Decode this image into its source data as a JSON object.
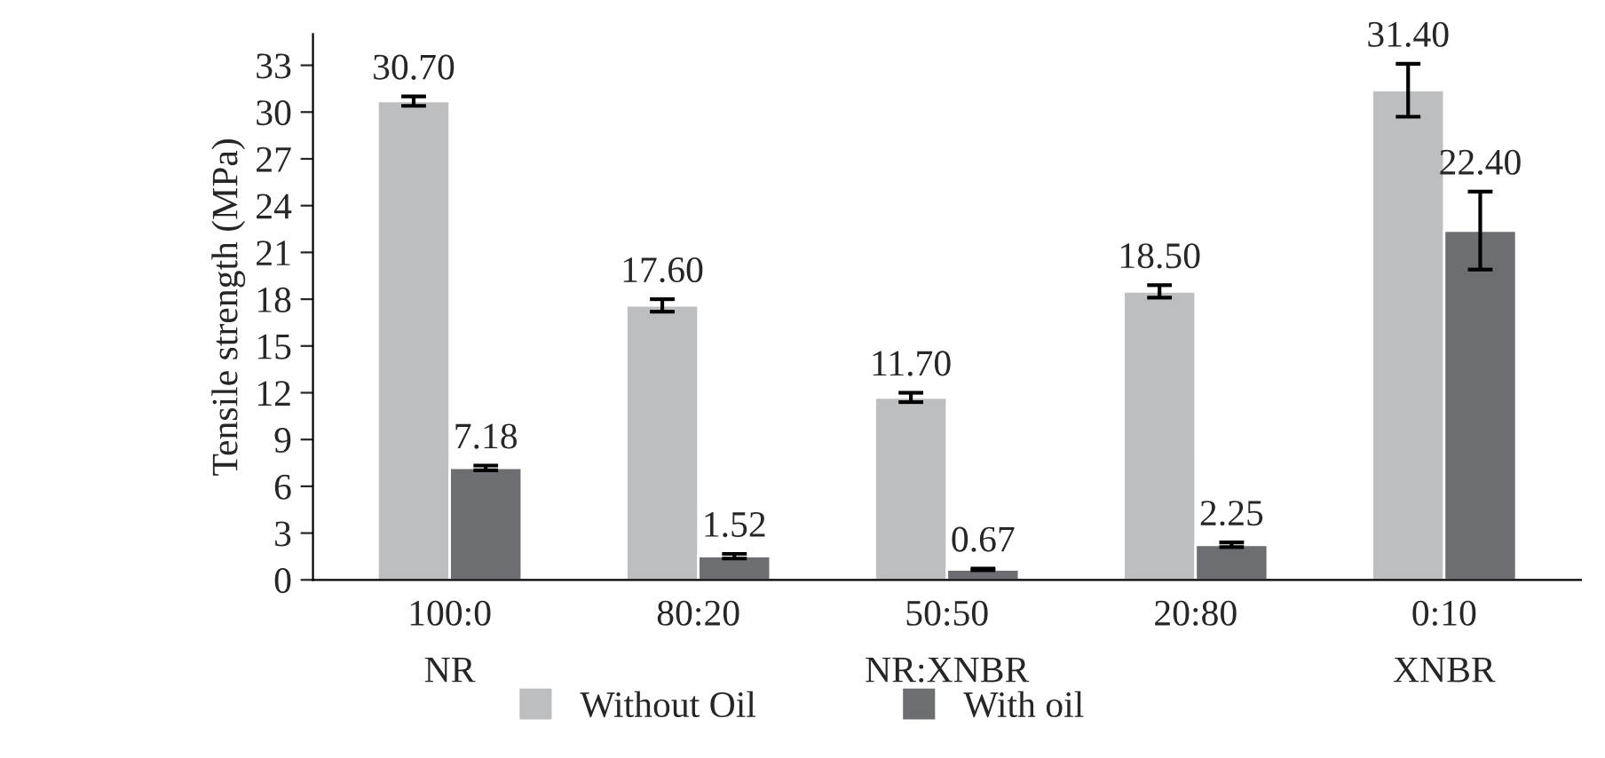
{
  "chart_data": {
    "type": "bar",
    "ylabel": "Tensile strength (MPa)",
    "categories": [
      "100:0\nNR",
      "80:20",
      "50:50\nNR:XNBR",
      "20:80",
      "0:10\nXNBR"
    ],
    "series": [
      {
        "name": "Without Oil",
        "color": "#bdbec0",
        "values": [
          30.7,
          17.6,
          11.7,
          18.5,
          31.4
        ],
        "errors": [
          0.3,
          0.4,
          0.3,
          0.4,
          1.7
        ],
        "value_labels": [
          "30.70",
          "17.60",
          "11.70",
          "18.50",
          "31.40"
        ]
      },
      {
        "name": "With oil",
        "color": "#6d6e71",
        "values": [
          7.18,
          1.52,
          0.67,
          2.25,
          22.4
        ],
        "errors": [
          0.15,
          0.15,
          0.05,
          0.15,
          2.5
        ],
        "value_labels": [
          "7.18",
          "1.52",
          "0.67",
          "2.25",
          "22.40"
        ]
      }
    ],
    "ylim": [
      0,
      35
    ],
    "yticks": [
      0,
      3,
      6,
      9,
      12,
      15,
      18,
      21,
      24,
      27,
      30,
      33
    ],
    "grid": false,
    "legend": "bottom"
  }
}
